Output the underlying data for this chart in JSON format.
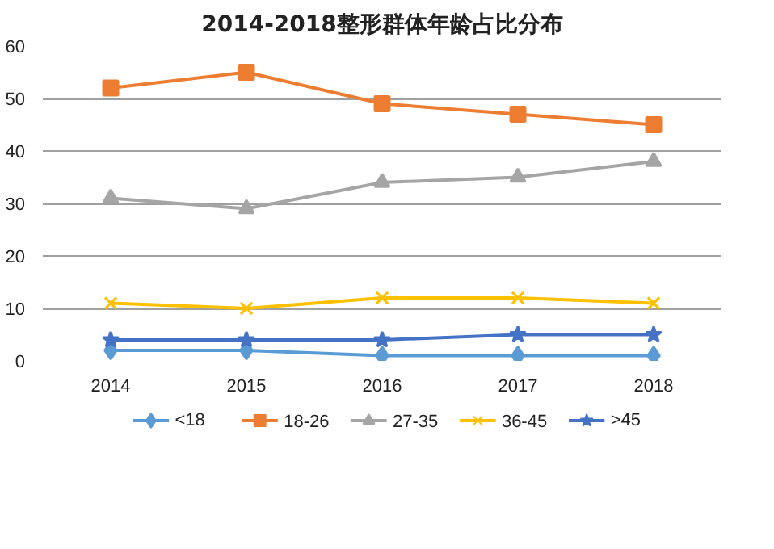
{
  "chart_data": {
    "type": "line",
    "title": "2014-2018整形群体年龄占比分布",
    "categories": [
      "2014",
      "2015",
      "2016",
      "2017",
      "2018"
    ],
    "series": [
      {
        "name": "<18",
        "color": "#5b9bd5",
        "marker": "diamond",
        "values": [
          2,
          2,
          1,
          1,
          1
        ]
      },
      {
        "name": "18-26",
        "color": "#ed7d31",
        "marker": "square",
        "values": [
          52,
          55,
          49,
          47,
          45
        ]
      },
      {
        "name": "27-35",
        "color": "#a5a5a5",
        "marker": "triangle",
        "values": [
          31,
          29,
          34,
          35,
          38
        ]
      },
      {
        "name": "36-45",
        "color": "#ffc000",
        "marker": "cross",
        "values": [
          11,
          10,
          12,
          12,
          11
        ]
      },
      {
        "name": ">45",
        "color": "#4472c4",
        "marker": "star",
        "values": [
          4,
          4,
          4,
          5,
          5
        ]
      }
    ],
    "ylim": [
      0,
      60
    ],
    "yticks": [
      0,
      10,
      20,
      30,
      40,
      50,
      60
    ],
    "grid": "y",
    "legend": "bottom"
  }
}
